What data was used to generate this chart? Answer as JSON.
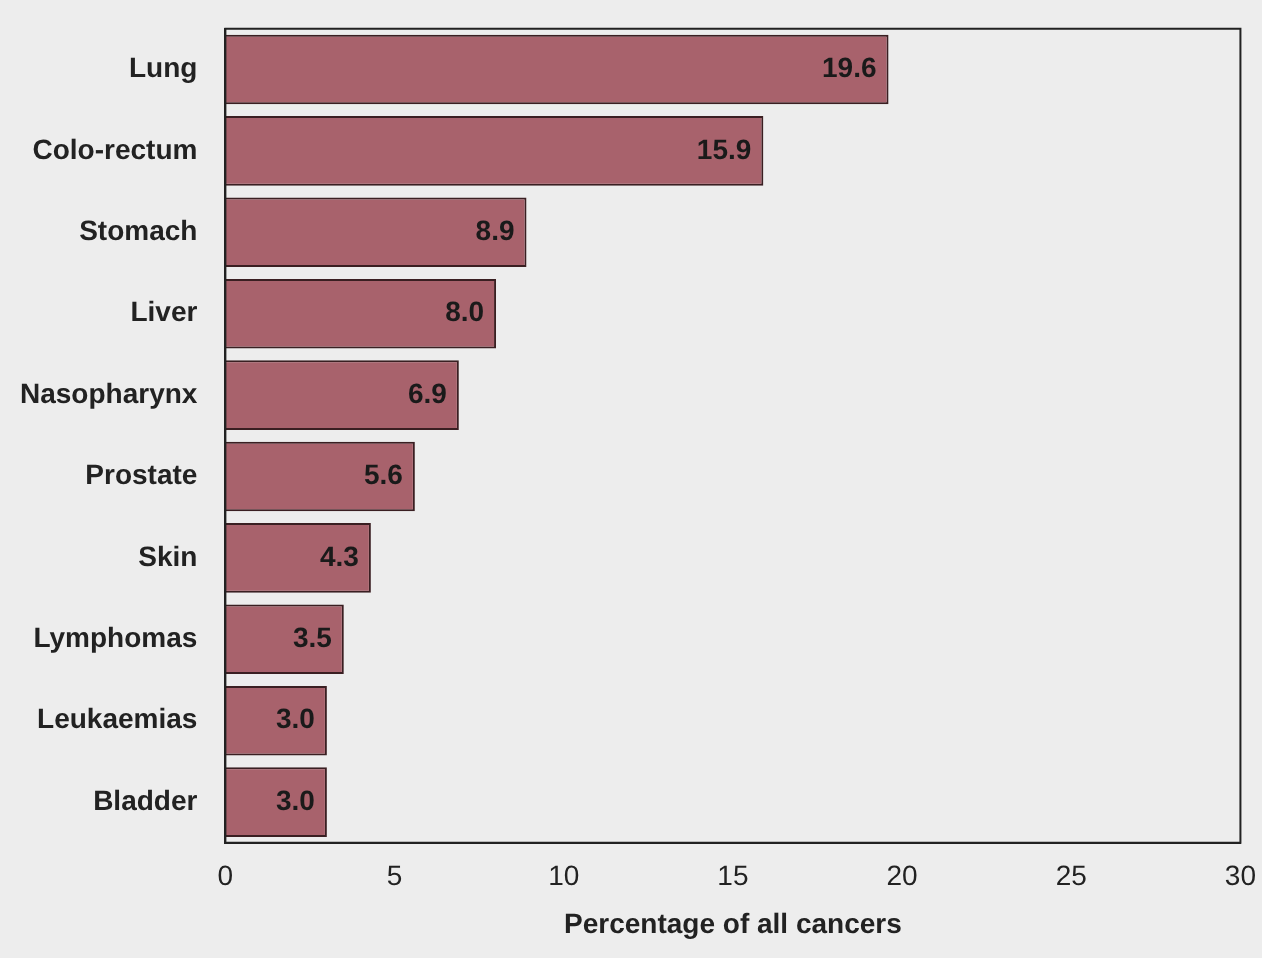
{
  "chart_data": {
    "type": "bar",
    "orientation": "horizontal",
    "xlabel": "Percentage of all cancers",
    "categories": [
      "Lung",
      "Colo-rectum",
      "Stomach",
      "Liver",
      "Nasopharynx",
      "Prostate",
      "Skin",
      "Lymphomas",
      "Leukaemias",
      "Bladder"
    ],
    "values": [
      19.6,
      15.9,
      8.9,
      8.0,
      6.9,
      5.6,
      4.3,
      3.5,
      3.0,
      3.0
    ],
    "color": "#a8626c",
    "xlim": [
      0,
      30
    ],
    "xticks": [
      0,
      5,
      10,
      15,
      20,
      25,
      30
    ],
    "value_labels": [
      "19.6",
      "15.9",
      "8.9",
      "8.0",
      "6.9",
      "5.6",
      "4.3",
      "3.5",
      "3.0",
      "3.0"
    ],
    "grid": false,
    "legend": false
  }
}
